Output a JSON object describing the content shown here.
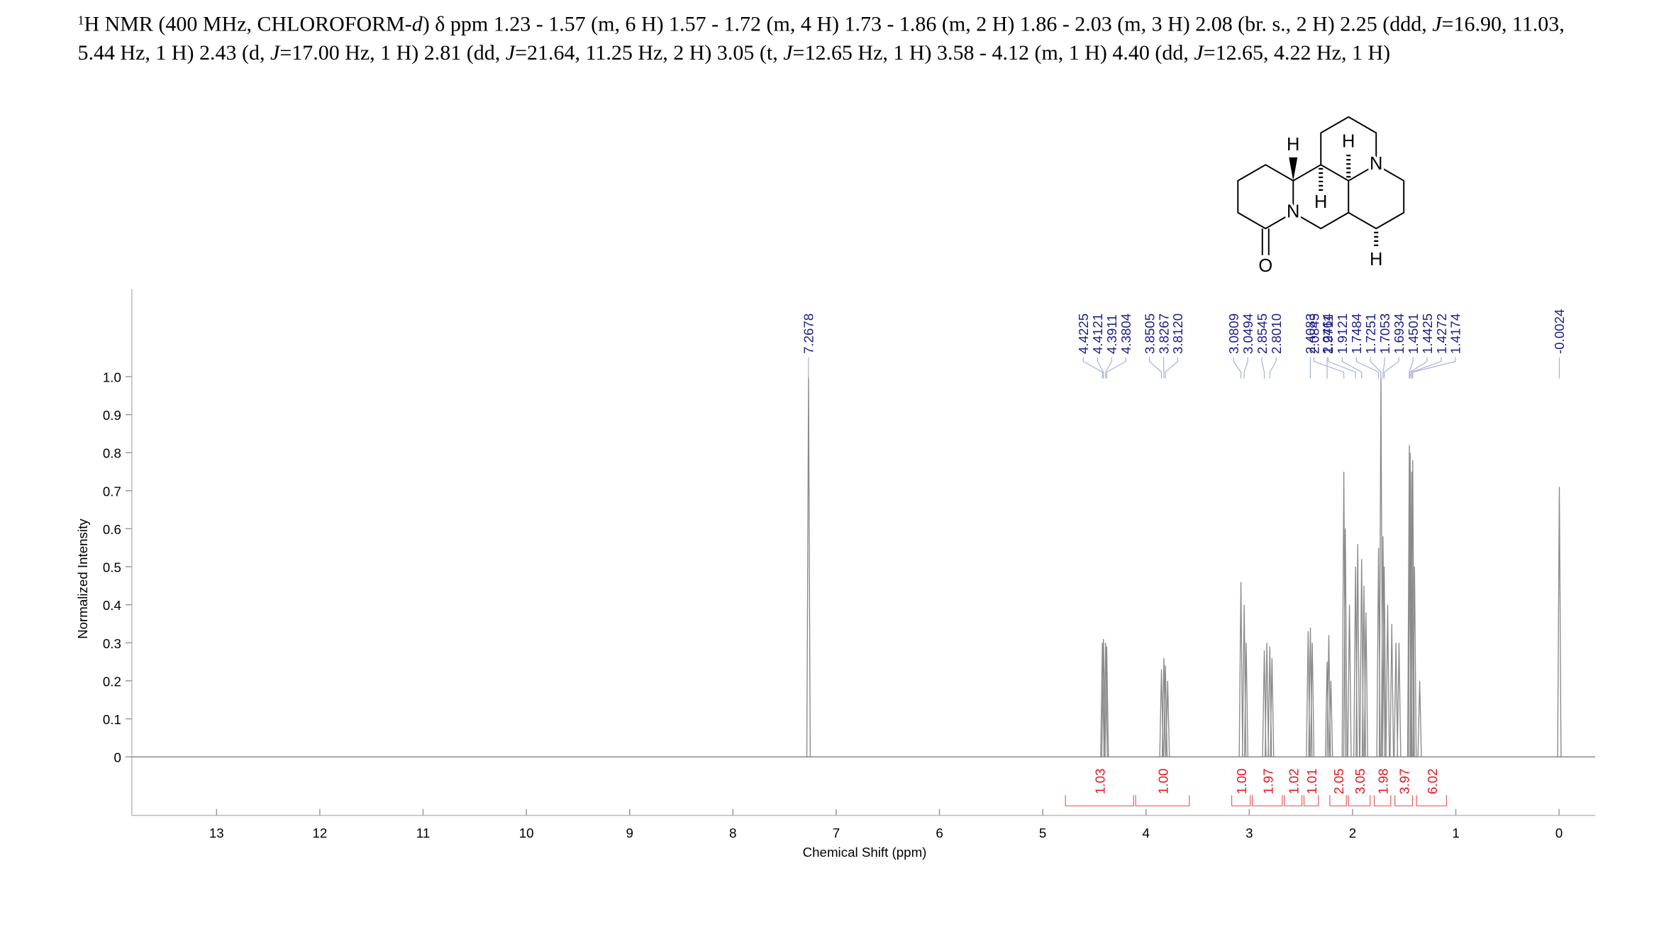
{
  "header": {
    "runs": [
      {
        "text": "1",
        "style": "sup"
      },
      {
        "text": "H NMR (400 MHz, CHLOROFORM-"
      },
      {
        "text": "d",
        "style": "italic"
      },
      {
        "text": ") δ ppm 1.23 - 1.57 (m, 6 H) 1.57 - 1.72 (m, 4 H) 1.73 - 1.86 (m, 2 H) 1.86 - 2.03 (m, 3 H) 2.08 (br. s., 2 H) 2.25 (ddd, "
      },
      {
        "text": "J",
        "style": "italic"
      },
      {
        "text": "=16.90, 11.03, 5.44 Hz, 1 H) 2.43 (d, "
      },
      {
        "text": "J",
        "style": "italic"
      },
      {
        "text": "=17.00 Hz, 1 H) 2.81 (dd, "
      },
      {
        "text": "J",
        "style": "italic"
      },
      {
        "text": "=21.64, 11.25 Hz, 2 H) 3.05 (t, "
      },
      {
        "text": "J",
        "style": "italic"
      },
      {
        "text": "=12.65 Hz, 1 H) 3.58 - 4.12 (m, 1 H) 4.40 (dd, "
      },
      {
        "text": "J",
        "style": "italic"
      },
      {
        "text": "=12.65, 4.22 Hz, 1 H)"
      }
    ]
  },
  "structure": {
    "atoms": [
      "H",
      "H",
      "H",
      "H",
      "N",
      "N",
      "O"
    ]
  },
  "chart_data": {
    "type": "spectrum",
    "xlabel": "Chemical Shift (ppm)",
    "ylabel": "Normalized Intensity",
    "xlim": [
      13.82,
      -0.35
    ],
    "ylim": [
      -0.154,
      1.23
    ],
    "xticks": [
      13,
      12,
      11,
      10,
      9,
      8,
      7,
      6,
      5,
      4,
      3,
      2,
      1,
      0
    ],
    "yticks": [
      0,
      0.1,
      0.2,
      0.3,
      0.4,
      0.5,
      0.6,
      0.7,
      0.8,
      0.9,
      {
        "value": 1,
        "label": "1.0"
      }
    ],
    "color": "#8a8a8a",
    "x": [
      7.2678,
      4.4225,
      4.4121,
      4.3911,
      4.3804,
      3.8505,
      3.8267,
      3.812,
      3.79,
      3.0809,
      3.0494,
      3.03,
      2.8545,
      2.83,
      2.801,
      2.78,
      2.43,
      2.4083,
      2.39,
      2.2464,
      2.23,
      2.21,
      2.0845,
      2.07,
      2.03,
      1.9711,
      1.95,
      1.9121,
      1.89,
      1.87,
      1.7484,
      1.7251,
      1.7053,
      1.6934,
      1.66,
      1.62,
      1.58,
      1.55,
      1.4501,
      1.4425,
      1.4272,
      1.4174,
      1.4,
      1.35,
      -0.0024
    ],
    "values": [
      1.0,
      0.3,
      0.31,
      0.3,
      0.29,
      0.23,
      0.26,
      0.24,
      0.2,
      0.46,
      0.4,
      0.3,
      0.28,
      0.3,
      0.29,
      0.26,
      0.33,
      0.34,
      0.3,
      0.25,
      0.32,
      0.2,
      0.75,
      0.6,
      0.4,
      0.5,
      0.56,
      0.52,
      0.45,
      0.38,
      0.55,
      1.0,
      0.58,
      0.5,
      0.4,
      0.35,
      0.3,
      0.3,
      0.82,
      0.8,
      0.75,
      0.78,
      0.5,
      0.2,
      0.71
    ],
    "peak_color": "#1c1c8a",
    "peak_labels": [
      7.2678,
      4.4225,
      4.4121,
      4.3911,
      4.3804,
      3.8505,
      3.8267,
      {
        "value": 3.812,
        "label": "3.8120"
      },
      3.0809,
      3.0494,
      2.8545,
      {
        "value": 2.801,
        "label": "2.8010"
      },
      2.4083,
      2.2464,
      2.0845,
      1.9711,
      1.9121,
      1.7484,
      1.7251,
      1.7053,
      1.6934,
      1.4501,
      1.4425,
      1.4272,
      1.4174,
      -0.0024
    ],
    "integral_color": "#e0161a",
    "integrals": {
      "ranges": [
        [
          4.78,
          4.12
        ],
        [
          4.1,
          3.58
        ],
        [
          3.17,
          2.99
        ],
        [
          2.97,
          2.68
        ],
        [
          2.66,
          2.49
        ],
        [
          2.47,
          2.33
        ],
        [
          2.22,
          2.06
        ],
        [
          2.04,
          1.83
        ],
        [
          1.79,
          1.63
        ],
        [
          1.59,
          1.42
        ],
        [
          1.38,
          1.09
        ]
      ],
      "values": [
        1.03,
        1,
        1,
        1.97,
        1.02,
        1.01,
        2.05,
        3.05,
        1.98,
        3.97,
        6.02
      ],
      "value_labels": [
        "1.03",
        "1.00",
        "1.00",
        "1.97",
        "1.02",
        "1.01",
        "2.05",
        "3.05",
        "1.98",
        "3.97",
        "6.02"
      ]
    }
  }
}
